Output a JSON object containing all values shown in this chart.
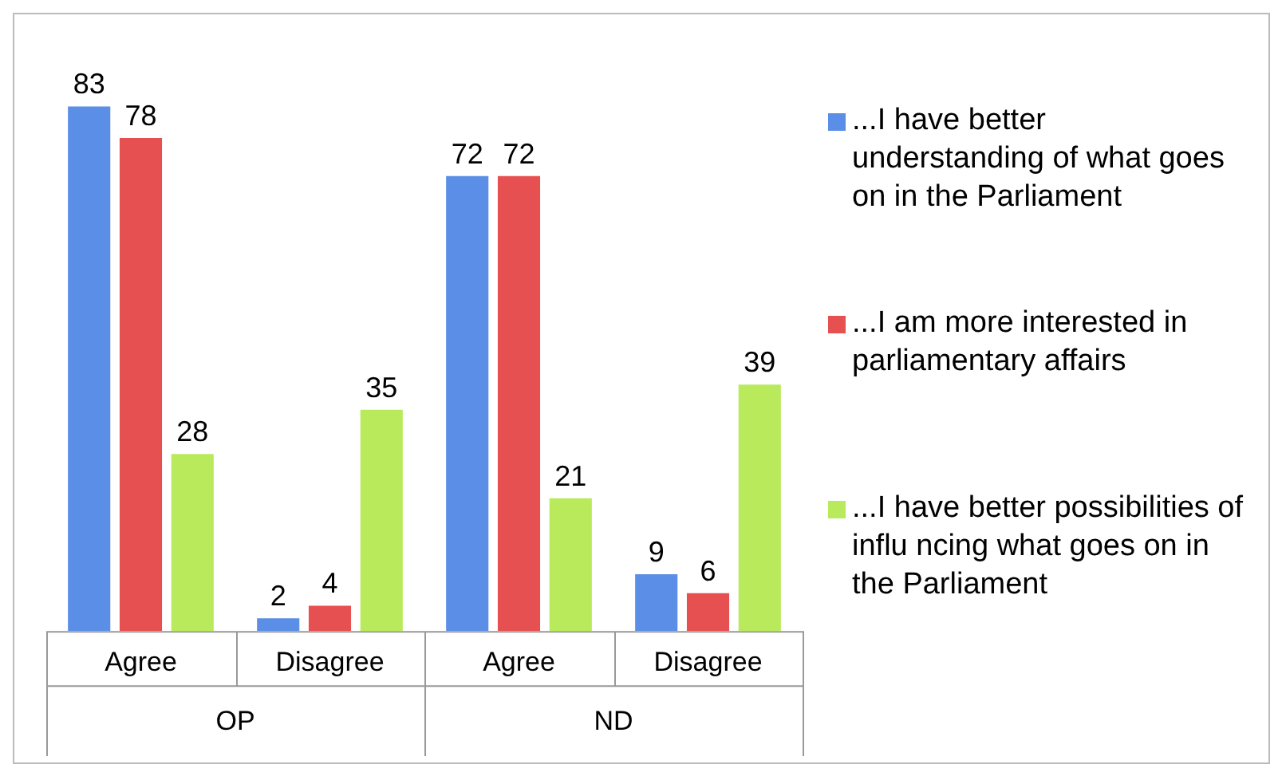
{
  "chart_data": {
    "type": "bar",
    "categories": [
      "Agree",
      "Disagree",
      "Agree",
      "Disagree"
    ],
    "series": [
      {
        "name": "...I have better understanding of what goes on in the Parliament",
        "color": "#5b8ee6",
        "values": [
          83,
          2,
          72,
          9
        ]
      },
      {
        "name": "...I am more interested in parliamentary affairs",
        "color": "#e65050",
        "values": [
          78,
          4,
          72,
          6
        ]
      },
      {
        "name": "...I have better possibilities of influ ncing what goes on in the Parliament",
        "color": "#b8ea5c",
        "values": [
          28,
          35,
          21,
          39
        ]
      }
    ],
    "annotations": [
      "OP",
      "ND"
    ],
    "data_labels": true,
    "legend": "right"
  }
}
